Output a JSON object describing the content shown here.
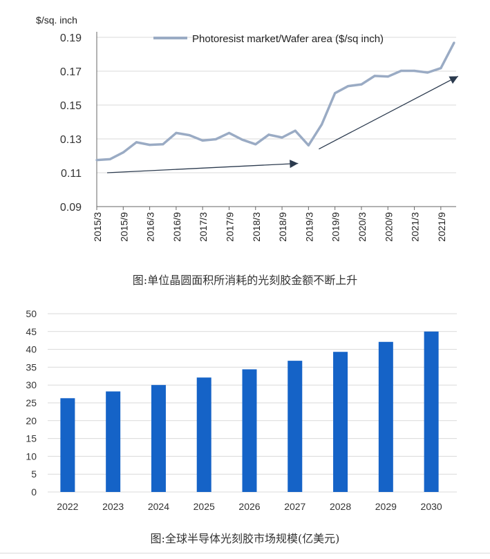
{
  "charts": {
    "top": {
      "caption": "图:单位晶圆面积所消耗的光刻胶金额不断上升"
    },
    "bottom": {
      "caption": "图:全球半导体光刻胶市场规模(亿美元)"
    }
  },
  "colors": {
    "line": "#9aabc4",
    "arrow": "#2b3a4e",
    "bar": "#1563c7",
    "grid": "#d9d9d9",
    "text": "#333333"
  },
  "chart_data": [
    {
      "type": "line",
      "title": "",
      "ylabel": "$/sq. inch",
      "xlabel": "",
      "legend": "top",
      "grid": true,
      "ylim": [
        0.09,
        0.19
      ],
      "yticks": [
        "0.09",
        "0.11",
        "0.13",
        "0.15",
        "0.17",
        "0.19"
      ],
      "xticks": [
        "2015/3",
        "2015/9",
        "2016/3",
        "2016/9",
        "2017/3",
        "2017/9",
        "2018/3",
        "2018/9",
        "2019/3",
        "2019/9",
        "2020/3",
        "2020/9",
        "2021/3",
        "2021/9"
      ],
      "series": [
        {
          "name": "Photoresist market/Wafer area ($/sq inch)",
          "x": [
            "2015/3",
            "2015/6",
            "2015/9",
            "2015/12",
            "2016/3",
            "2016/6",
            "2016/9",
            "2016/12",
            "2017/3",
            "2017/6",
            "2017/9",
            "2017/12",
            "2018/3",
            "2018/6",
            "2018/9",
            "2018/12",
            "2019/3",
            "2019/6",
            "2019/9",
            "2019/12",
            "2020/3",
            "2020/6",
            "2020/9",
            "2020/12",
            "2021/3",
            "2021/6",
            "2021/9",
            "2021/12"
          ],
          "values": [
            0.1175,
            0.118,
            0.122,
            0.128,
            0.1265,
            0.1268,
            0.1335,
            0.1322,
            0.129,
            0.1298,
            0.1335,
            0.1295,
            0.1268,
            0.1325,
            0.1308,
            0.1348,
            0.1262,
            0.1385,
            0.157,
            0.1612,
            0.1622,
            0.1672,
            0.1668,
            0.1702,
            0.1702,
            0.1692,
            0.1718,
            0.1868
          ]
        }
      ],
      "annotations": [
        {
          "type": "arrow",
          "from": [
            "2015/3",
            0.11
          ],
          "to": [
            "2019/3",
            0.1155
          ]
        },
        {
          "type": "arrow",
          "from": [
            "2019/3",
            0.124
          ],
          "to": [
            "2021/9",
            0.167
          ]
        }
      ]
    },
    {
      "type": "bar",
      "title": "",
      "xlabel": "",
      "ylabel": "",
      "grid": true,
      "ylim": [
        0,
        50
      ],
      "yticks": [
        "0",
        "5",
        "10",
        "15",
        "20",
        "25",
        "30",
        "35",
        "40",
        "45",
        "50"
      ],
      "categories": [
        "2022",
        "2023",
        "2024",
        "2025",
        "2026",
        "2027",
        "2028",
        "2029",
        "2030"
      ],
      "values": [
        26.3,
        28.2,
        30.0,
        32.1,
        34.4,
        36.8,
        39.3,
        42.1,
        45.0
      ]
    }
  ]
}
